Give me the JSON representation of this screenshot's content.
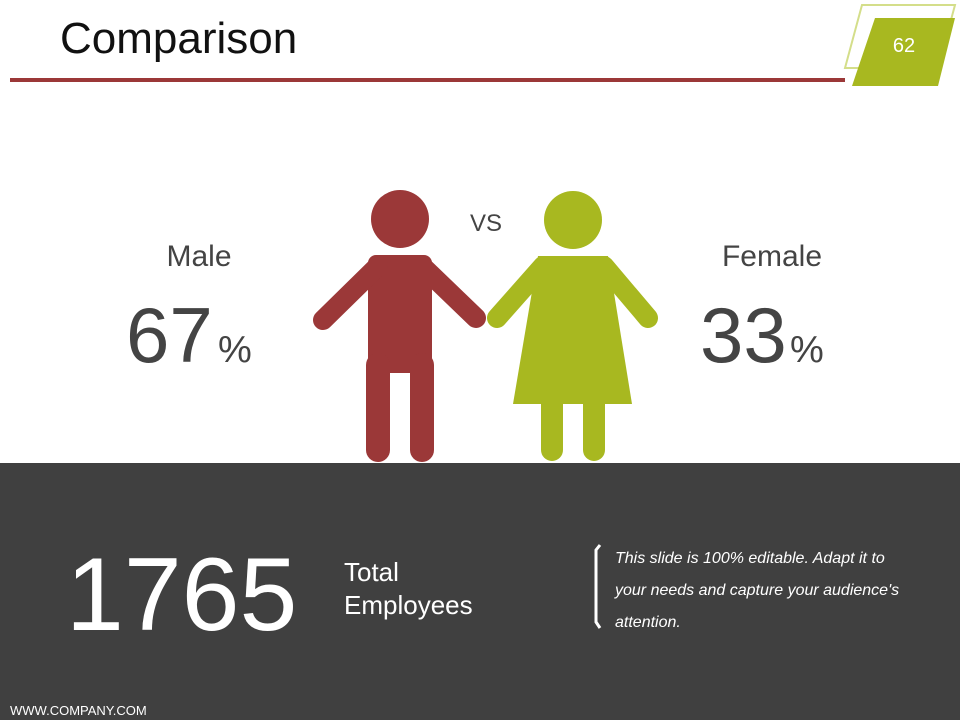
{
  "header": {
    "title": "Comparison",
    "page_number": "62"
  },
  "male": {
    "label": "Male",
    "value": "67",
    "unit": "%"
  },
  "vs": "VS",
  "female": {
    "label": "Female",
    "value": "33",
    "unit": "%"
  },
  "summary": {
    "value": "1765",
    "label": "Total Employees",
    "note": "This slide is 100% editable. Adapt it to your needs and capture your audience's attention."
  },
  "footer": {
    "website": "WWW.COMPANY.COM"
  }
}
